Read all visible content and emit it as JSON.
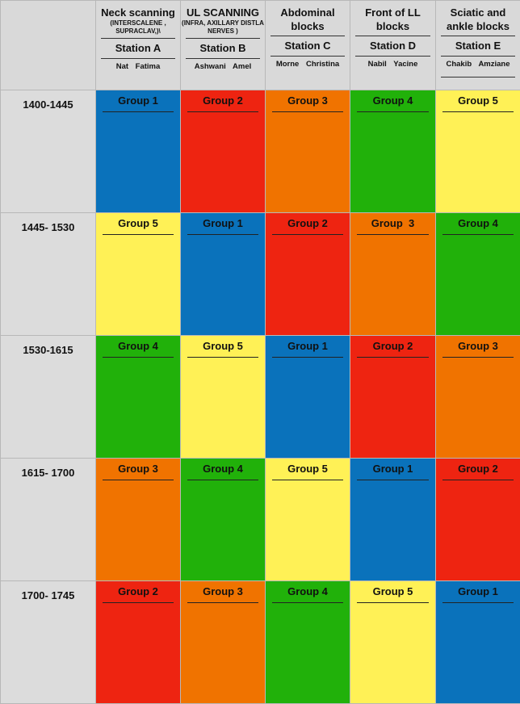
{
  "colors": {
    "blue": "#0a72bb",
    "red": "#ee2411",
    "orange": "#f07300",
    "green": "#21b10a",
    "yellow": "#fff156"
  },
  "stations": [
    {
      "title": "Neck scanning",
      "sub": "(INTERSCALENE , SUPRACLAV,)\\",
      "station": "Station A",
      "names": "Nat Fatima"
    },
    {
      "title": "UL SCANNING",
      "sub": "(INFRA, AXILLARY DISTLA NERVES )",
      "station": "Station B",
      "names": "Ashwani Amel"
    },
    {
      "title": "Abdominal blocks",
      "sub": "",
      "station": "Station C",
      "names": "Morne Christina"
    },
    {
      "title": "Front of LL blocks",
      "sub": "",
      "station": "Station D",
      "names": "Nabil Yacine"
    },
    {
      "title": "Sciatic and ankle blocks",
      "sub": "",
      "station": "Station E",
      "names": "Chakib Amziane"
    }
  ],
  "rows": [
    {
      "time": "1400-1445",
      "cells": [
        {
          "label": "Group 1",
          "color": "blue"
        },
        {
          "label": "Group 2",
          "color": "red"
        },
        {
          "label": "Group 3",
          "color": "orange"
        },
        {
          "label": "Group 4",
          "color": "green"
        },
        {
          "label": "Group 5",
          "color": "yellow"
        }
      ]
    },
    {
      "time": "1445- 1530",
      "cells": [
        {
          "label": "Group 5",
          "color": "yellow"
        },
        {
          "label": "Group 1",
          "color": "blue"
        },
        {
          "label": "Group 2",
          "color": "red"
        },
        {
          "label": "Group  3",
          "color": "orange"
        },
        {
          "label": "Group 4",
          "color": "green"
        }
      ]
    },
    {
      "time": "1530-1615",
      "cells": [
        {
          "label": "Group 4",
          "color": "green"
        },
        {
          "label": "Group 5",
          "color": "yellow"
        },
        {
          "label": "Group 1",
          "color": "blue"
        },
        {
          "label": "Group 2",
          "color": "red"
        },
        {
          "label": "Group 3",
          "color": "orange"
        }
      ]
    },
    {
      "time": "1615- 1700",
      "cells": [
        {
          "label": "Group 3",
          "color": "orange"
        },
        {
          "label": "Group 4",
          "color": "green"
        },
        {
          "label": "Group 5",
          "color": "yellow"
        },
        {
          "label": "Group 1",
          "color": "blue"
        },
        {
          "label": "Group 2",
          "color": "red"
        }
      ]
    },
    {
      "time": "1700- 1745",
      "cells": [
        {
          "label": "Group 2",
          "color": "red"
        },
        {
          "label": "Group 3",
          "color": "orange"
        },
        {
          "label": "Group 4",
          "color": "green"
        },
        {
          "label": "Group 5",
          "color": "yellow"
        },
        {
          "label": "Group 1",
          "color": "blue"
        }
      ]
    }
  ]
}
